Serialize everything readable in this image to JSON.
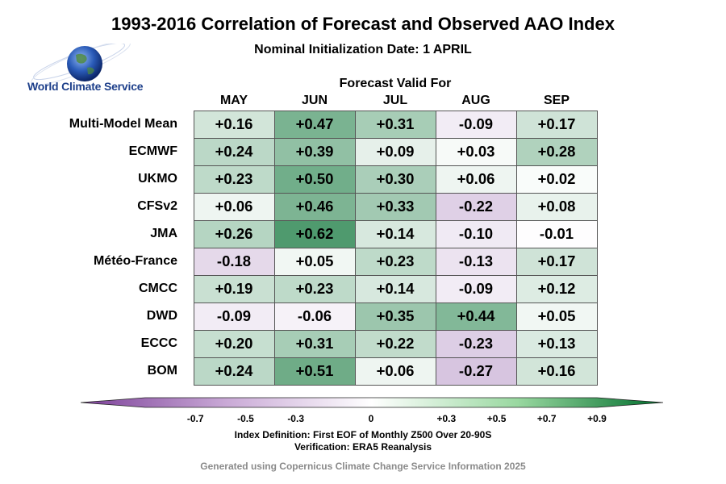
{
  "title": "1993-2016 Correlation of Forecast and Observed AAO Index",
  "subtitle": "Nominal Initialization Date: 1 APRIL",
  "logo_text": "World Climate Service",
  "colors": {
    "negative_max": "#7b3f98",
    "neutral": "#ffffff",
    "positive_max": "#006d2c"
  },
  "chart_data": {
    "type": "heatmap",
    "header": "Forecast Valid For",
    "columns": [
      "MAY",
      "JUN",
      "JUL",
      "AUG",
      "SEP"
    ],
    "rows": [
      "Multi-Model Mean",
      "ECMWF",
      "UKMO",
      "CFSv2",
      "JMA",
      "Météo-France",
      "CMCC",
      "DWD",
      "ECCC",
      "BOM"
    ],
    "values": [
      [
        0.16,
        0.47,
        0.31,
        -0.09,
        0.17
      ],
      [
        0.24,
        0.39,
        0.09,
        0.03,
        0.28
      ],
      [
        0.23,
        0.5,
        0.3,
        0.06,
        0.02
      ],
      [
        0.06,
        0.46,
        0.33,
        -0.22,
        0.08
      ],
      [
        0.26,
        0.62,
        0.14,
        -0.1,
        -0.01
      ],
      [
        -0.18,
        0.05,
        0.23,
        -0.13,
        0.17
      ],
      [
        0.19,
        0.23,
        0.14,
        -0.09,
        0.12
      ],
      [
        -0.09,
        -0.06,
        0.35,
        0.44,
        0.05
      ],
      [
        0.2,
        0.31,
        0.22,
        -0.23,
        0.13
      ],
      [
        0.24,
        0.51,
        0.06,
        -0.27,
        0.16
      ]
    ],
    "labels": [
      [
        "+0.16",
        "+0.47",
        "+0.31",
        "-0.09",
        "+0.17"
      ],
      [
        "+0.24",
        "+0.39",
        "+0.09",
        "+0.03",
        "+0.28"
      ],
      [
        "+0.23",
        "+0.50",
        "+0.30",
        "+0.06",
        "+0.02"
      ],
      [
        "+0.06",
        "+0.46",
        "+0.33",
        "-0.22",
        "+0.08"
      ],
      [
        "+0.26",
        "+0.62",
        "+0.14",
        "-0.10",
        "-0.01"
      ],
      [
        "-0.18",
        "+0.05",
        "+0.23",
        "-0.13",
        "+0.17"
      ],
      [
        "+0.19",
        "+0.23",
        "+0.14",
        "-0.09",
        "+0.12"
      ],
      [
        "-0.09",
        "-0.06",
        "+0.35",
        "+0.44",
        "+0.05"
      ],
      [
        "+0.20",
        "+0.31",
        "+0.22",
        "-0.23",
        "+0.13"
      ],
      [
        "+0.24",
        "+0.51",
        "+0.06",
        "-0.27",
        "+0.16"
      ]
    ],
    "colorbar": {
      "range": [
        -0.9,
        0.9
      ],
      "ticks": [
        -0.7,
        -0.5,
        -0.3,
        0,
        0.3,
        0.5,
        0.7,
        0.9
      ],
      "tick_labels": [
        "-0.7",
        "-0.5",
        "-0.3",
        "0",
        "+0.3",
        "+0.5",
        "+0.7",
        "+0.9"
      ]
    }
  },
  "index_definition": "Index Definition: First EOF of Monthly Z500 Over 20-90S",
  "verification": "Verification: ERA5 Reanalysis",
  "credit": "Generated using Copernicus Climate Change Service Information 2025"
}
